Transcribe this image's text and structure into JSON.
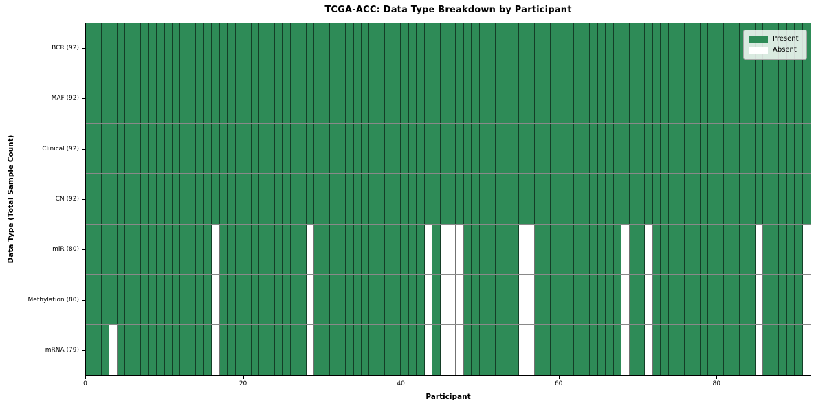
{
  "title": "TCGA-ACC: Data Type Breakdown by Participant",
  "axes": {
    "xlabel": "Participant",
    "ylabel": "Data Type (Total Sample Count)"
  },
  "legend": {
    "present_label": "Present",
    "absent_label": "Absent"
  },
  "colors": {
    "present": "#2e8b57",
    "absent": "#ffffff",
    "cell_edge": "rgba(0,0,0,0.55)",
    "spine": "#000000"
  },
  "chart_data": {
    "type": "heatmap",
    "title": "TCGA-ACC: Data Type Breakdown by Participant",
    "xlabel": "Participant",
    "ylabel": "Data Type (Total Sample Count)",
    "x_range": [
      0,
      92
    ],
    "x_ticks": [
      0,
      20,
      40,
      60,
      80
    ],
    "n_participants": 92,
    "grid": true,
    "legend_position": "upper right",
    "legend": [
      {
        "label": "Present",
        "color": "#2e8b57"
      },
      {
        "label": "Absent",
        "color": "#ffffff"
      }
    ],
    "rows": [
      {
        "label": "BCR (92)",
        "data_type": "BCR",
        "present_count": 92,
        "absent_participants": []
      },
      {
        "label": "MAF (92)",
        "data_type": "MAF",
        "present_count": 92,
        "absent_participants": []
      },
      {
        "label": "Clinical (92)",
        "data_type": "Clinical",
        "present_count": 92,
        "absent_participants": []
      },
      {
        "label": "CN (92)",
        "data_type": "CN",
        "present_count": 92,
        "absent_participants": []
      },
      {
        "label": "miR (80)",
        "data_type": "miR",
        "present_count": 80,
        "absent_participants": [
          16,
          28,
          43,
          45,
          46,
          47,
          55,
          56,
          68,
          71,
          85,
          91
        ]
      },
      {
        "label": "Methylation (80)",
        "data_type": "Methylation",
        "present_count": 80,
        "absent_participants": [
          16,
          28,
          43,
          45,
          46,
          47,
          55,
          56,
          68,
          71,
          85,
          91
        ]
      },
      {
        "label": "mRNA (79)",
        "data_type": "mRNA",
        "present_count": 79,
        "absent_participants": [
          3,
          16,
          28,
          43,
          45,
          46,
          47,
          55,
          56,
          68,
          71,
          85,
          91
        ]
      }
    ]
  }
}
